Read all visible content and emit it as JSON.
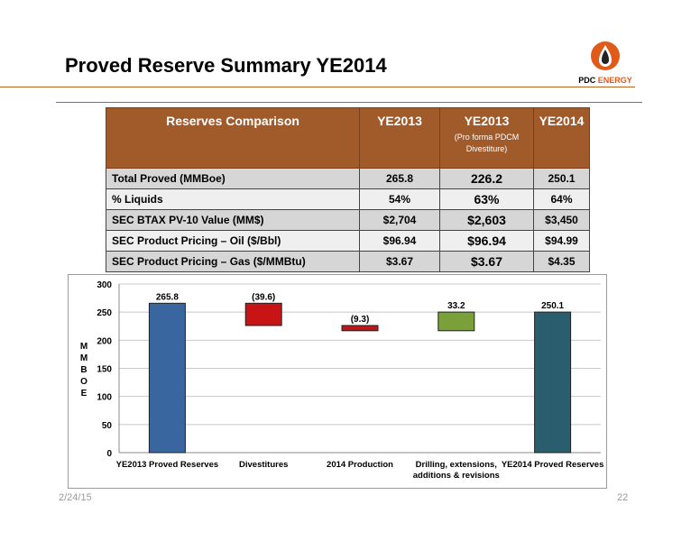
{
  "slide": {
    "title": "Proved Reserve Summary YE2014",
    "footer_date": "2/24/15",
    "page_number": "22",
    "logo": {
      "word1": "PDC",
      "word2": "ENERGY",
      "icon": "flame-drop-icon",
      "accent": "#e05a1a"
    }
  },
  "table": {
    "headers": [
      {
        "label": "Reserves Comparison",
        "sub": ""
      },
      {
        "label": "YE2013",
        "sub": ""
      },
      {
        "label": "YE2013",
        "sub": "(Pro forma PDCM Divestiture)"
      },
      {
        "label": "YE2014",
        "sub": ""
      }
    ],
    "rows": [
      {
        "label": "Total Proved (MMBoe)",
        "ye2013": "265.8",
        "pro_forma": "226.2",
        "ye2014": "250.1"
      },
      {
        "label": "% Liquids",
        "ye2013": "54%",
        "pro_forma": "63%",
        "ye2014": "64%"
      },
      {
        "label": "SEC BTAX PV-10 Value (MM$)",
        "ye2013": "$2,704",
        "pro_forma": "$2,603",
        "ye2014": "$3,450"
      },
      {
        "label": "SEC Product Pricing – Oil ($/Bbl)",
        "ye2013": "$96.94",
        "pro_forma": "$96.94",
        "ye2014": "$94.99"
      },
      {
        "label": "SEC Product Pricing – Gas ($/MMBtu)",
        "ye2013": "$3.67",
        "pro_forma": "$3.67",
        "ye2014": "$4.35"
      }
    ],
    "header_color": "#a15a2a"
  },
  "chart_data": {
    "type": "bar",
    "subtype": "waterfall",
    "categories": [
      "YE2013 Proved Reserves",
      "Divestitures",
      "2014 Production",
      "Drilling, extensions, additions & revisions",
      "YE2014 Proved Reserves"
    ],
    "category_lines": [
      [
        "YE2013 Proved Reserves"
      ],
      [
        "Divestitures"
      ],
      [
        "2014 Production"
      ],
      [
        "Drilling, extensions,",
        "additions & revisions"
      ],
      [
        "YE2014 Proved Reserves"
      ]
    ],
    "bars": [
      {
        "start": 0,
        "end": 265.8,
        "label": "265.8",
        "color": "#3a66a0"
      },
      {
        "start": 226.2,
        "end": 265.8,
        "label": "(39.6)",
        "color": "#c81414"
      },
      {
        "start": 216.9,
        "end": 226.2,
        "label": "(9.3)",
        "color": "#b81818"
      },
      {
        "start": 216.9,
        "end": 250.1,
        "label": "33.2",
        "color": "#7aa03a"
      },
      {
        "start": 0,
        "end": 250.1,
        "label": "250.1",
        "color": "#2a5e6e"
      }
    ],
    "ylabel": "MMBOE",
    "ylim": [
      0,
      300
    ],
    "yticks": [
      "0",
      "50",
      "100",
      "150",
      "200",
      "250",
      "300"
    ],
    "grid": true,
    "legend": "none"
  }
}
